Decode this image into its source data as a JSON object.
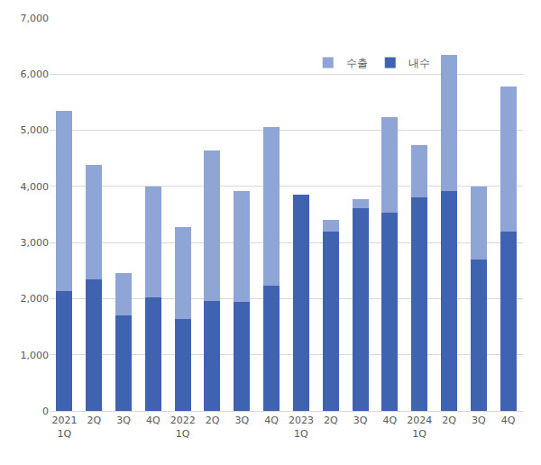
{
  "chart_data": {
    "type": "bar",
    "stacked": true,
    "grid": true,
    "legend": "top",
    "categories": [
      "2021\n1Q",
      "2Q",
      "3Q",
      "4Q",
      "2022\n1Q",
      "2Q",
      "3Q",
      "4Q",
      "2023\n1Q",
      "2Q",
      "3Q",
      "4Q",
      "2024\n1Q",
      "2Q",
      "3Q",
      "4Q"
    ],
    "series": [
      {
        "name": "내수",
        "color": "#3f63b0",
        "values": [
          2130,
          2350,
          1700,
          2020,
          1640,
          1960,
          1940,
          2230,
          3850,
          3200,
          3610,
          3530,
          3800,
          3920,
          2690,
          3200
        ]
      },
      {
        "name": "수출",
        "color": "#8fa5d6",
        "values": [
          3220,
          2040,
          760,
          1980,
          1640,
          2680,
          1970,
          2820,
          0,
          200,
          170,
          1700,
          930,
          2420,
          1310,
          2580
        ]
      }
    ],
    "ylim": [
      0,
      7000
    ],
    "yticks": [
      0,
      {
        "value": 1000,
        "label": "1,000"
      },
      {
        "value": 2000,
        "label": "2,000"
      },
      {
        "value": 3000,
        "label": "3,000"
      },
      {
        "value": 4000,
        "label": "4,000"
      },
      {
        "value": 5000,
        "label": "5,000"
      },
      {
        "value": 6000,
        "label": "6,000"
      },
      {
        "value": 7000,
        "label": "7,000"
      }
    ]
  }
}
